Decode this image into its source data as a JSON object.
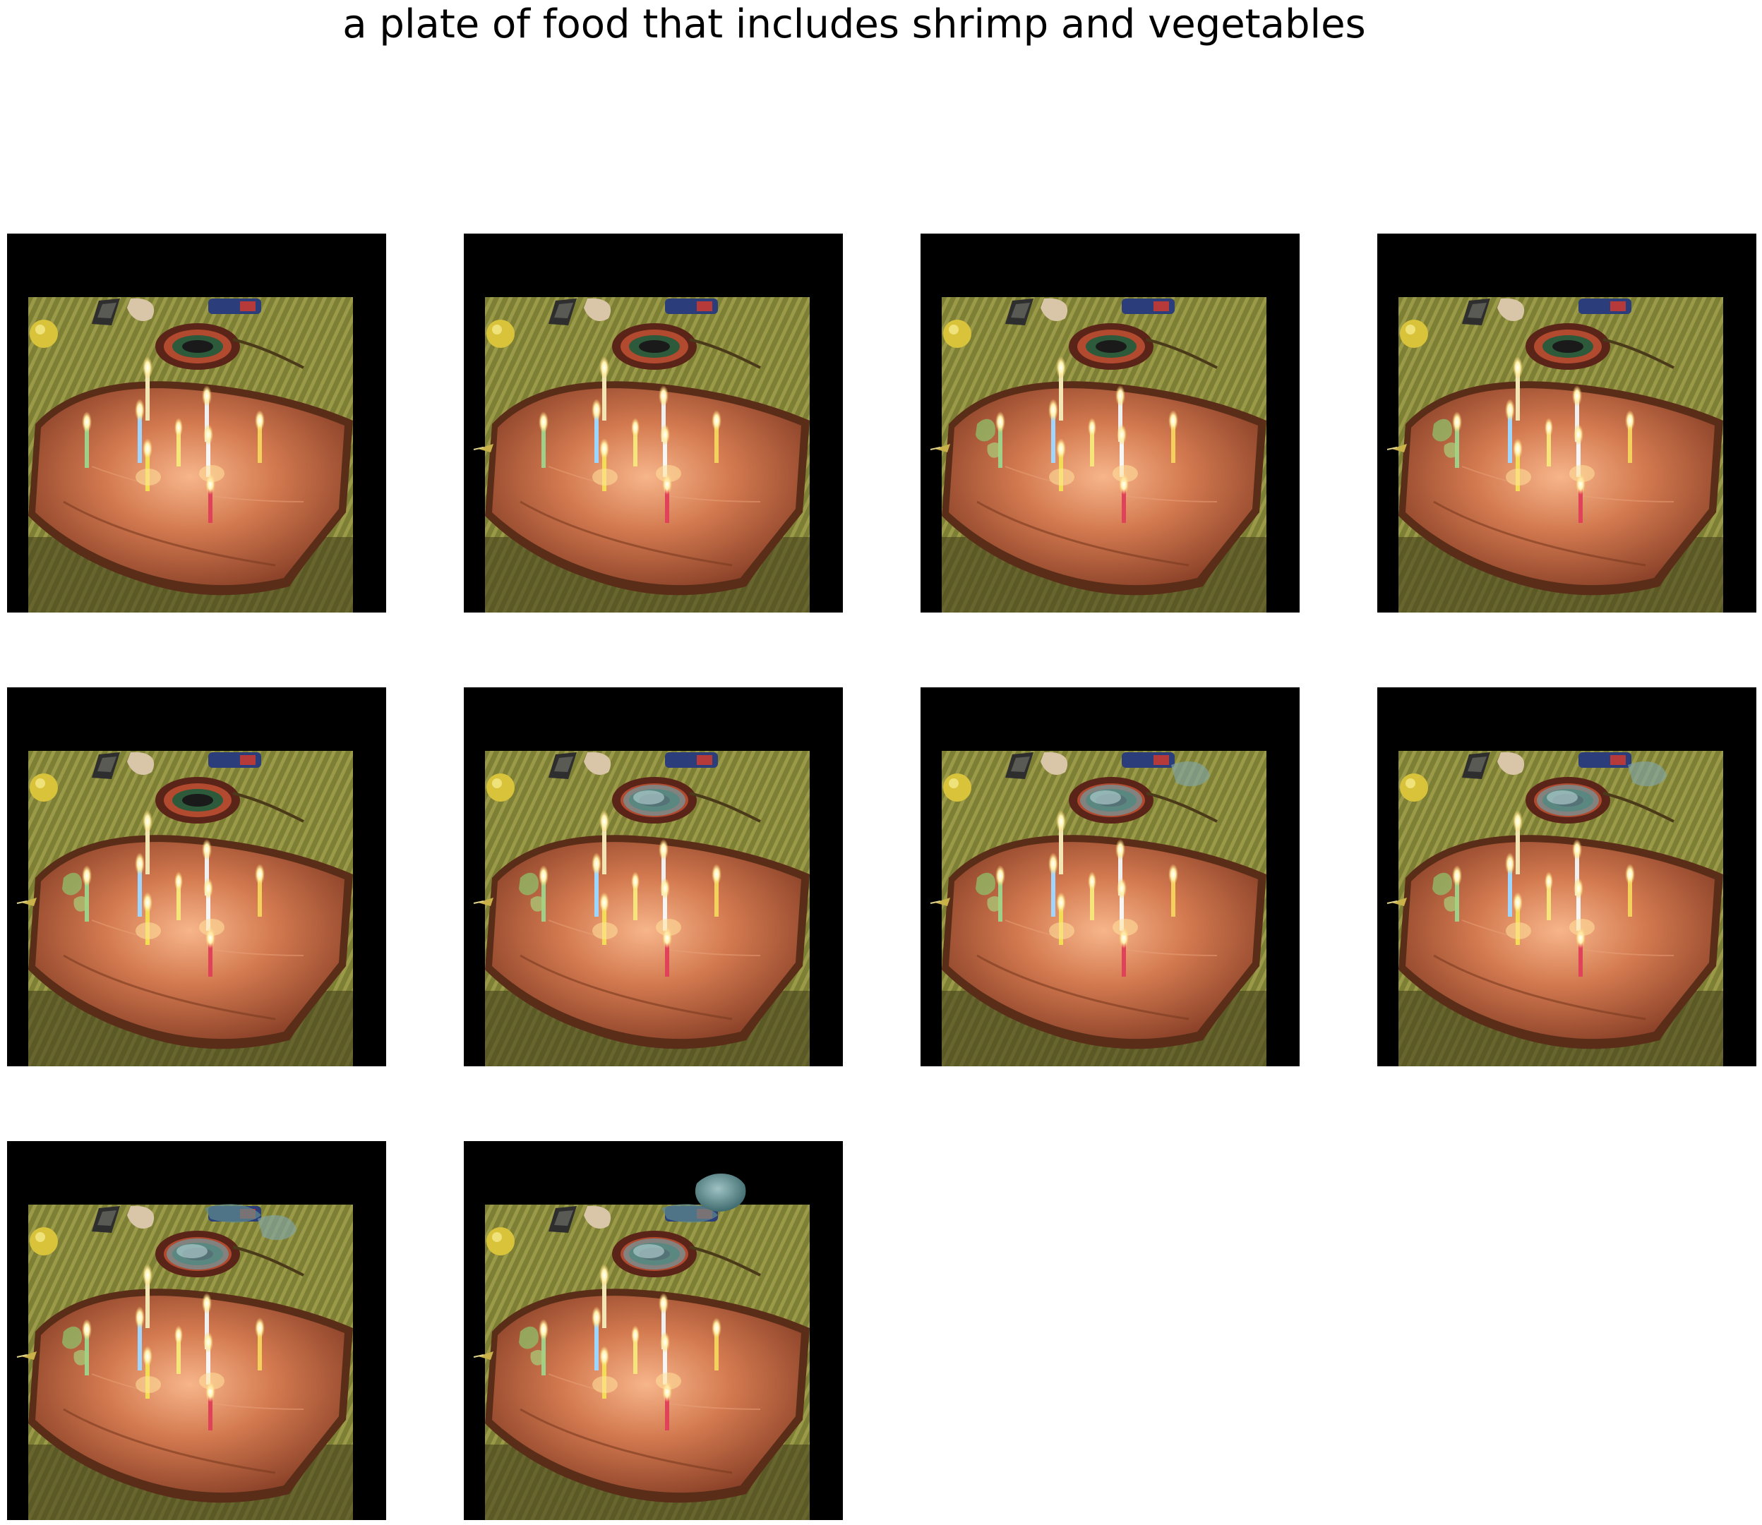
{
  "figure": {
    "title": "a plate of food that includes shrimp and vegetables"
  },
  "panels": [
    {
      "id": 1,
      "overlays": []
    },
    {
      "id": 2,
      "overlays": [
        "left-insect"
      ]
    },
    {
      "id": 3,
      "overlays": [
        "left-insect",
        "green-leaves"
      ]
    },
    {
      "id": 4,
      "overlays": [
        "left-insect",
        "green-leaves"
      ]
    },
    {
      "id": 5,
      "overlays": [
        "left-insect",
        "green-leaves"
      ]
    },
    {
      "id": 6,
      "overlays": [
        "left-insect",
        "green-leaves",
        "doily-texture"
      ]
    },
    {
      "id": 7,
      "overlays": [
        "left-insect",
        "green-leaves",
        "doily-texture",
        "corner-texture"
      ]
    },
    {
      "id": 8,
      "overlays": [
        "left-insect",
        "green-leaves",
        "doily-texture",
        "corner-texture"
      ]
    },
    {
      "id": 9,
      "overlays": [
        "left-insect",
        "green-leaves",
        "doily-texture",
        "corner-texture",
        "top-texture"
      ]
    },
    {
      "id": 10,
      "overlays": [
        "left-insect",
        "green-leaves",
        "doily-texture",
        "top-texture",
        "teal-blob"
      ]
    }
  ],
  "colors": {
    "background": "#ffffff",
    "frame": "#000000",
    "tablecloth": "#8a8a3a",
    "frosting": "#b8643e",
    "candle_flame": "#fff6c8"
  }
}
